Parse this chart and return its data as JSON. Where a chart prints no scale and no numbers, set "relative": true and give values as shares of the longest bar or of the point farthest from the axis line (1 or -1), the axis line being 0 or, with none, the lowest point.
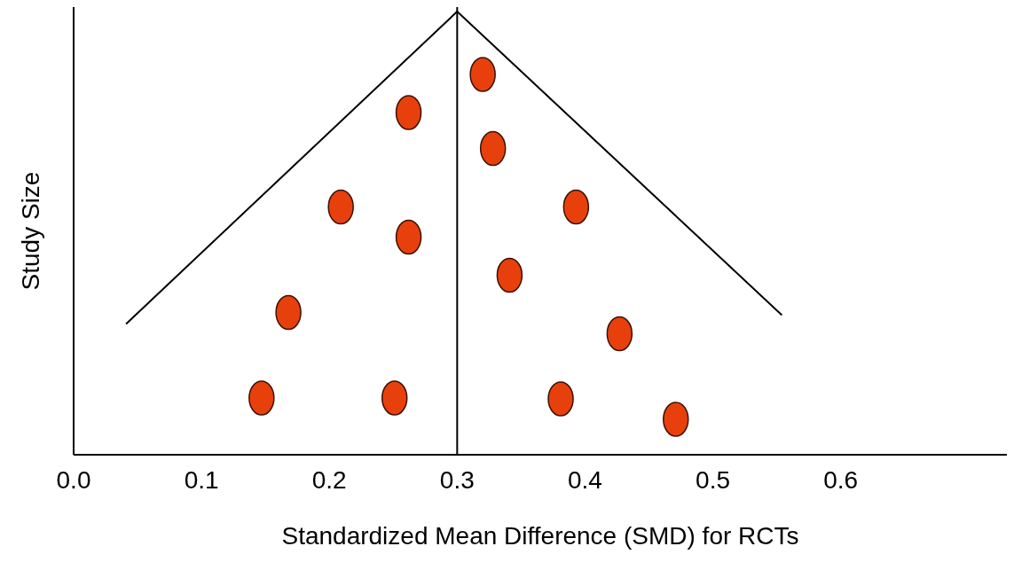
{
  "chart_data": {
    "type": "scatter",
    "relative": true,
    "xlabel": "Standardized Mean Difference (SMD) for RCTs",
    "ylabel": "Study Size",
    "xlim": [
      0,
      0.73
    ],
    "xticks": [
      {
        "value": 0,
        "label": "0.0"
      },
      0.1,
      0.2,
      0.3,
      0.4,
      0.5,
      0.6
    ],
    "marker": "circle",
    "series": [
      {
        "color": "#e8400c",
        "x": [
          0.32,
          0.262,
          0.328,
          0.209,
          0.393,
          0.262,
          0.341,
          0.168,
          0.427,
          0.147,
          0.251,
          0.381,
          0.471
        ],
        "values": [
          0.858,
          0.772,
          0.691,
          0.559,
          0.559,
          0.491,
          0.405,
          0.321,
          0.273,
          0.128,
          0.128,
          0.126,
          0.08
        ]
      },
      {
        "type": "line",
        "color": "#000000",
        "marker": "none",
        "x": [
          0.041,
          0.3,
          0.554
        ],
        "values": [
          0.295,
          1,
          0.315
        ]
      }
    ],
    "ref_lines": [
      {
        "axis": "x",
        "value": 0.3,
        "color": "#000000"
      }
    ]
  }
}
